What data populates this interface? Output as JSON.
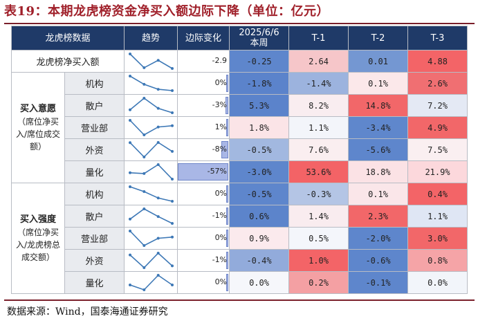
{
  "title": "表19：本期龙虎榜资金净买入额边际下降（单位：亿元）",
  "source": "数据来源：Wind，国泰海通证券研究",
  "columns": {
    "category": "龙虎榜数据",
    "trend": "趋势",
    "change": "边际变化",
    "current_line1": "2025/6/6",
    "current_line2": "本周",
    "t1": "T-1",
    "t2": "T-2",
    "t3": "T-3"
  },
  "groups": {
    "intent": {
      "title": "买入意愿",
      "note": "（席位净买入/席位成交额）"
    },
    "strength": {
      "title": "买入强度",
      "note": "（席位净买入/龙虎榜总成交额）"
    }
  },
  "rows": [
    {
      "label": "龙虎榜净买入额",
      "change": "-2.9",
      "change_bar": 0,
      "values": [
        "-0.25",
        "2.64",
        "0.01",
        "4.88"
      ],
      "colors": [
        "#5e86cc",
        "#f6c6c9",
        "#7497d2",
        "#f36467"
      ],
      "trend": [
        -0.25,
        2.64,
        0.01,
        4.88
      ]
    },
    {
      "label": "机构",
      "change": "0%",
      "change_bar": 0.02,
      "values": [
        "-1.8%",
        "-1.4%",
        "0.1%",
        "2.6%"
      ],
      "colors": [
        "#5b83cb",
        "#9cb3de",
        "#fbe8ea",
        "#f06f72"
      ],
      "trend": [
        -1.8,
        -1.4,
        0.1,
        2.6
      ]
    },
    {
      "label": "散户",
      "change": "-3%",
      "change_bar": 0.05,
      "values": [
        "5.3%",
        "8.2%",
        "14.8%",
        "7.2%"
      ],
      "colors": [
        "#5b83cb",
        "#f9edf0",
        "#f26769",
        "#e4e9f4"
      ],
      "trend": [
        5.3,
        8.2,
        14.8,
        7.2
      ]
    },
    {
      "label": "营业部",
      "change": "1%",
      "change_bar": 0.02,
      "values": [
        "1.8%",
        "1.1%",
        "-3.4%",
        "4.9%"
      ],
      "colors": [
        "#fbe4e7",
        "#f3f5fa",
        "#5f87cc",
        "#f26769"
      ],
      "trend": [
        1.8,
        1.1,
        -3.4,
        4.9
      ]
    },
    {
      "label": "外资",
      "change": "-8%",
      "change_bar": 0.14,
      "values": [
        "-0.5%",
        "7.6%",
        "-5.6%",
        "7.5%"
      ],
      "colors": [
        "#a2b8e0",
        "#faeef0",
        "#5e86cc",
        "#faeff1"
      ],
      "trend": [
        -0.5,
        7.6,
        -5.6,
        7.5
      ]
    },
    {
      "label": "量化",
      "change": "-57%",
      "change_bar": 1,
      "values": [
        "-3.0%",
        "53.6%",
        "18.8%",
        "21.9%"
      ],
      "colors": [
        "#5e86cc",
        "#f36366",
        "#fbe2e5",
        "#fcd8dc"
      ],
      "trend": [
        -3.0,
        53.6,
        18.8,
        21.9
      ]
    },
    {
      "label": "机构",
      "change": "0%",
      "change_bar": 0.02,
      "values": [
        "-0.5%",
        "-0.3%",
        "0.1%",
        "0.4%"
      ],
      "colors": [
        "#5e86cc",
        "#b4c5e5",
        "#fae6e9",
        "#f36467"
      ],
      "trend": [
        -0.5,
        -0.3,
        0.1,
        0.4
      ]
    },
    {
      "label": "散户",
      "change": "-1%",
      "change_bar": 0.02,
      "values": [
        "0.6%",
        "1.4%",
        "2.3%",
        "1.1%"
      ],
      "colors": [
        "#5c84cb",
        "#f9ecef",
        "#f26769",
        "#dfe6f4"
      ],
      "trend": [
        0.6,
        1.4,
        2.3,
        1.1
      ]
    },
    {
      "label": "营业部",
      "change": "0%",
      "change_bar": 0.02,
      "values": [
        "0.9%",
        "0.5%",
        "-2.0%",
        "3.0%"
      ],
      "colors": [
        "#fbeaed",
        "#f4f6fb",
        "#5e86cc",
        "#f26769"
      ],
      "trend": [
        0.9,
        0.5,
        -2.0,
        3.0
      ]
    },
    {
      "label": "外资",
      "change": "-1%",
      "change_bar": 0.02,
      "values": [
        "-0.4%",
        "1.0%",
        "-0.6%",
        "0.8%"
      ],
      "colors": [
        "#92abdb",
        "#f36467",
        "#5e86cc",
        "#f5a4a7"
      ],
      "trend": [
        -0.4,
        1.0,
        -0.6,
        0.8
      ]
    },
    {
      "label": "量化",
      "change": "0%",
      "change_bar": 0.02,
      "values": [
        "0.0%",
        "0.2%",
        "-0.1%",
        "0.0%"
      ],
      "colors": [
        "#f6f7fb",
        "#f4a0a3",
        "#5e86cc",
        "#f2f5fa"
      ],
      "trend": [
        0.0,
        0.2,
        -0.1,
        0.0
      ]
    }
  ]
}
